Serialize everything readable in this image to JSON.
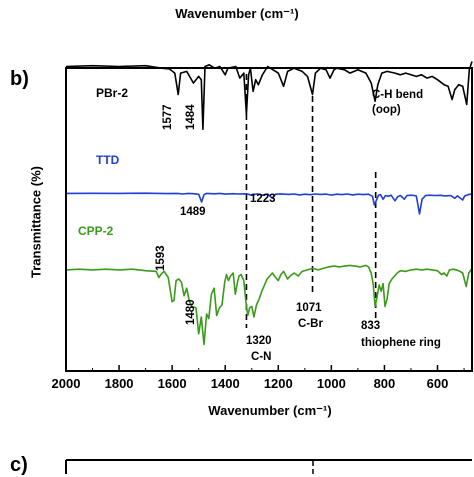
{
  "top_axis_label": "Wavenumber (cm⁻¹)",
  "panel_b": "b)",
  "panel_c": "c)",
  "colors": {
    "pbr2": "#000000",
    "ttd": "#1f3fd6",
    "cpp2": "#3a9a1a"
  },
  "chart_data": {
    "type": "line",
    "xlabel": "Wavenumber (cm⁻¹)",
    "ylabel": "Transmittance (%)",
    "xlim": [
      2000,
      470
    ],
    "x_reversed": true,
    "ylim": [
      0,
      1
    ],
    "y_ticks_shown": false,
    "x_ticks": [
      2000,
      1800,
      1600,
      1400,
      1200,
      1000,
      800,
      600
    ],
    "grid": false,
    "legend": "inline labels, top-left of each trace",
    "series": [
      {
        "name": "PBr-2",
        "color": "#000000",
        "points": [
          [
            2000,
            0.9
          ],
          [
            1900,
            0.905
          ],
          [
            1800,
            0.9
          ],
          [
            1700,
            0.905
          ],
          [
            1640,
            0.89
          ],
          [
            1610,
            0.885
          ],
          [
            1590,
            0.86
          ],
          [
            1577,
            0.73
          ],
          [
            1568,
            0.86
          ],
          [
            1545,
            0.87
          ],
          [
            1520,
            0.8
          ],
          [
            1500,
            0.84
          ],
          [
            1490,
            0.82
          ],
          [
            1484,
            0.52
          ],
          [
            1476,
            0.9
          ],
          [
            1460,
            0.91
          ],
          [
            1440,
            0.89
          ],
          [
            1420,
            0.9
          ],
          [
            1400,
            0.85
          ],
          [
            1390,
            0.89
          ],
          [
            1360,
            0.9
          ],
          [
            1345,
            0.83
          ],
          [
            1330,
            0.86
          ],
          [
            1320,
            0.61
          ],
          [
            1312,
            0.85
          ],
          [
            1305,
            0.89
          ],
          [
            1295,
            0.75
          ],
          [
            1285,
            0.82
          ],
          [
            1275,
            0.79
          ],
          [
            1260,
            0.85
          ],
          [
            1240,
            0.9
          ],
          [
            1220,
            0.88
          ],
          [
            1200,
            0.86
          ],
          [
            1180,
            0.78
          ],
          [
            1165,
            0.87
          ],
          [
            1140,
            0.89
          ],
          [
            1110,
            0.87
          ],
          [
            1090,
            0.84
          ],
          [
            1071,
            0.73
          ],
          [
            1060,
            0.86
          ],
          [
            1040,
            0.89
          ],
          [
            1020,
            0.88
          ],
          [
            1005,
            0.83
          ],
          [
            990,
            0.88
          ],
          [
            980,
            0.89
          ],
          [
            950,
            0.88
          ],
          [
            930,
            0.86
          ],
          [
            900,
            0.88
          ],
          [
            870,
            0.86
          ],
          [
            850,
            0.8
          ],
          [
            835,
            0.69
          ],
          [
            825,
            0.79
          ],
          [
            810,
            0.86
          ],
          [
            790,
            0.87
          ],
          [
            760,
            0.86
          ],
          [
            740,
            0.85
          ],
          [
            720,
            0.86
          ],
          [
            700,
            0.85
          ],
          [
            680,
            0.84
          ],
          [
            660,
            0.85
          ],
          [
            640,
            0.83
          ],
          [
            620,
            0.84
          ],
          [
            600,
            0.82
          ],
          [
            575,
            0.79
          ],
          [
            560,
            0.78
          ],
          [
            545,
            0.7
          ],
          [
            535,
            0.76
          ],
          [
            520,
            0.79
          ],
          [
            505,
            0.78
          ],
          [
            490,
            0.67
          ],
          [
            480,
            0.88
          ],
          [
            470,
            0.93
          ]
        ]
      },
      {
        "name": "TTD",
        "color": "#1f3fd6",
        "points": [
          [
            2000,
            0.69
          ],
          [
            1900,
            0.692
          ],
          [
            1800,
            0.69
          ],
          [
            1700,
            0.693
          ],
          [
            1650,
            0.69
          ],
          [
            1620,
            0.688
          ],
          [
            1580,
            0.69
          ],
          [
            1560,
            0.683
          ],
          [
            1540,
            0.69
          ],
          [
            1520,
            0.686
          ],
          [
            1500,
            0.679
          ],
          [
            1489,
            0.585
          ],
          [
            1480,
            0.675
          ],
          [
            1470,
            0.69
          ],
          [
            1440,
            0.685
          ],
          [
            1420,
            0.69
          ],
          [
            1400,
            0.682
          ],
          [
            1370,
            0.686
          ],
          [
            1350,
            0.683
          ],
          [
            1320,
            0.685
          ],
          [
            1300,
            0.67
          ],
          [
            1280,
            0.684
          ],
          [
            1260,
            0.668
          ],
          [
            1240,
            0.683
          ],
          [
            1223,
            0.632
          ],
          [
            1210,
            0.68
          ],
          [
            1190,
            0.684
          ],
          [
            1160,
            0.678
          ],
          [
            1140,
            0.683
          ],
          [
            1120,
            0.672
          ],
          [
            1100,
            0.68
          ],
          [
            1080,
            0.675
          ],
          [
            1060,
            0.683
          ],
          [
            1040,
            0.678
          ],
          [
            1020,
            0.682
          ],
          [
            1000,
            0.67
          ],
          [
            980,
            0.68
          ],
          [
            960,
            0.676
          ],
          [
            940,
            0.683
          ],
          [
            920,
            0.672
          ],
          [
            900,
            0.68
          ],
          [
            880,
            0.676
          ],
          [
            860,
            0.68
          ],
          [
            845,
            0.655
          ],
          [
            838,
            0.55
          ],
          [
            830,
            0.61
          ],
          [
            822,
            0.67
          ],
          [
            815,
            0.675
          ],
          [
            805,
            0.62
          ],
          [
            796,
            0.665
          ],
          [
            785,
            0.655
          ],
          [
            775,
            0.668
          ],
          [
            760,
            0.6
          ],
          [
            750,
            0.65
          ],
          [
            740,
            0.665
          ],
          [
            725,
            0.62
          ],
          [
            715,
            0.665
          ],
          [
            700,
            0.668
          ],
          [
            690,
            0.665
          ],
          [
            680,
            0.66
          ],
          [
            668,
            0.44
          ],
          [
            658,
            0.62
          ],
          [
            645,
            0.665
          ],
          [
            630,
            0.668
          ],
          [
            610,
            0.665
          ],
          [
            590,
            0.667
          ],
          [
            570,
            0.66
          ],
          [
            550,
            0.665
          ],
          [
            535,
            0.63
          ],
          [
            525,
            0.66
          ],
          [
            505,
            0.61
          ],
          [
            498,
            0.658
          ],
          [
            485,
            0.675
          ],
          [
            470,
            0.685
          ]
        ]
      },
      {
        "name": "CPP-2",
        "color": "#3a9a1a",
        "points": [
          [
            2000,
            0.54
          ],
          [
            1950,
            0.545
          ],
          [
            1900,
            0.54
          ],
          [
            1850,
            0.545
          ],
          [
            1800,
            0.54
          ],
          [
            1750,
            0.545
          ],
          [
            1700,
            0.535
          ],
          [
            1660,
            0.53
          ],
          [
            1650,
            0.49
          ],
          [
            1640,
            0.515
          ],
          [
            1630,
            0.53
          ],
          [
            1615,
            0.49
          ],
          [
            1600,
            0.33
          ],
          [
            1593,
            0.34
          ],
          [
            1585,
            0.47
          ],
          [
            1575,
            0.48
          ],
          [
            1565,
            0.46
          ],
          [
            1555,
            0.37
          ],
          [
            1545,
            0.42
          ],
          [
            1535,
            0.33
          ],
          [
            1525,
            0.3
          ],
          [
            1510,
            0.29
          ],
          [
            1500,
            0.12
          ],
          [
            1490,
            0.23
          ],
          [
            1480,
            0.05
          ],
          [
            1470,
            0.25
          ],
          [
            1462,
            0.22
          ],
          [
            1452,
            0.38
          ],
          [
            1442,
            0.42
          ],
          [
            1432,
            0.24
          ],
          [
            1422,
            0.29
          ],
          [
            1412,
            0.31
          ],
          [
            1402,
            0.46
          ],
          [
            1395,
            0.51
          ],
          [
            1388,
            0.47
          ],
          [
            1380,
            0.5
          ],
          [
            1370,
            0.52
          ],
          [
            1362,
            0.38
          ],
          [
            1355,
            0.45
          ],
          [
            1348,
            0.5
          ],
          [
            1340,
            0.51
          ],
          [
            1330,
            0.47
          ],
          [
            1322,
            0.33
          ],
          [
            1315,
            0.24
          ],
          [
            1308,
            0.29
          ],
          [
            1300,
            0.3
          ],
          [
            1292,
            0.23
          ],
          [
            1282,
            0.31
          ],
          [
            1272,
            0.35
          ],
          [
            1262,
            0.4
          ],
          [
            1252,
            0.44
          ],
          [
            1242,
            0.48
          ],
          [
            1232,
            0.5
          ],
          [
            1222,
            0.52
          ],
          [
            1210,
            0.49
          ],
          [
            1200,
            0.47
          ],
          [
            1190,
            0.51
          ],
          [
            1180,
            0.53
          ],
          [
            1165,
            0.48
          ],
          [
            1155,
            0.5
          ],
          [
            1140,
            0.52
          ],
          [
            1125,
            0.5
          ],
          [
            1110,
            0.53
          ],
          [
            1090,
            0.54
          ],
          [
            1070,
            0.55
          ],
          [
            1050,
            0.54
          ],
          [
            1030,
            0.55
          ],
          [
            1010,
            0.56
          ],
          [
            990,
            0.565
          ],
          [
            970,
            0.56
          ],
          [
            950,
            0.565
          ],
          [
            930,
            0.57
          ],
          [
            910,
            0.565
          ],
          [
            890,
            0.56
          ],
          [
            870,
            0.57
          ],
          [
            860,
            0.56
          ],
          [
            850,
            0.52
          ],
          [
            842,
            0.44
          ],
          [
            835,
            0.3
          ],
          [
            828,
            0.36
          ],
          [
            820,
            0.44
          ],
          [
            812,
            0.4
          ],
          [
            805,
            0.45
          ],
          [
            798,
            0.3
          ],
          [
            790,
            0.35
          ],
          [
            782,
            0.45
          ],
          [
            772,
            0.48
          ],
          [
            762,
            0.5
          ],
          [
            752,
            0.52
          ],
          [
            740,
            0.535
          ],
          [
            720,
            0.53
          ],
          [
            700,
            0.54
          ],
          [
            680,
            0.545
          ],
          [
            660,
            0.54
          ],
          [
            640,
            0.545
          ],
          [
            620,
            0.54
          ],
          [
            600,
            0.535
          ],
          [
            585,
            0.51
          ],
          [
            575,
            0.52
          ],
          [
            565,
            0.5
          ],
          [
            555,
            0.54
          ],
          [
            540,
            0.545
          ],
          [
            520,
            0.535
          ],
          [
            505,
            0.52
          ],
          [
            492,
            0.43
          ],
          [
            482,
            0.52
          ],
          [
            470,
            0.55
          ]
        ]
      }
    ],
    "reference_lines": [
      1320,
      1071,
      833
    ],
    "annotations": [
      {
        "text": "1577",
        "series": "PBr-2"
      },
      {
        "text": "1484",
        "series": "PBr-2"
      },
      {
        "text": "C-H bend",
        "series": "PBr-2"
      },
      {
        "text": "(oop)",
        "series": "PBr-2"
      },
      {
        "text": "1489",
        "series": "TTD"
      },
      {
        "text": "1223",
        "series": "TTD"
      },
      {
        "text": "1593",
        "series": "CPP-2"
      },
      {
        "text": "1480",
        "series": "CPP-2"
      },
      {
        "text": "1320",
        "series": "CPP-2"
      },
      {
        "text": "C-N",
        "series": "CPP-2"
      },
      {
        "text": "1071",
        "series": "CPP-2"
      },
      {
        "text": "C-Br",
        "series": "CPP-2"
      },
      {
        "text": "833",
        "series": "CPP-2"
      },
      {
        "text": "thiophene ring",
        "series": "CPP-2"
      }
    ]
  }
}
